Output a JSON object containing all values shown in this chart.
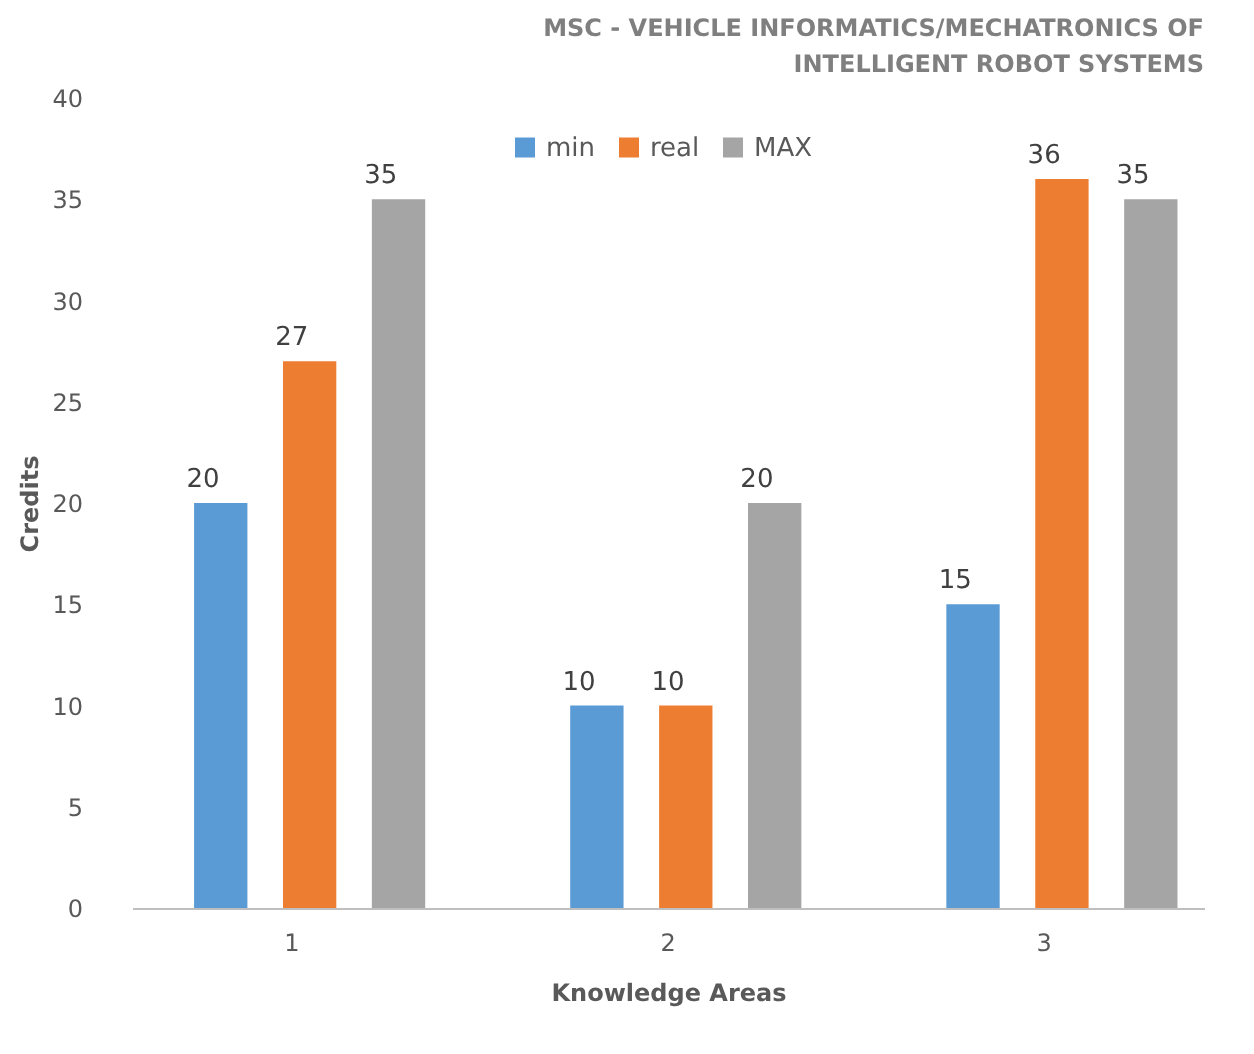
{
  "chart_data": {
    "type": "bar",
    "title": "MSC - VEHICLE INFORMATICS/MECHATRONICS OF INTELLIGENT ROBOT SYSTEMS",
    "xlabel": "Knowledge Areas",
    "ylabel": "Credits",
    "categories": [
      "1",
      "2",
      "3"
    ],
    "series": [
      {
        "name": "min",
        "color": "#5b9bd5",
        "values": [
          20,
          10,
          15
        ]
      },
      {
        "name": "real",
        "color": "#ed7d31",
        "values": [
          27,
          10,
          36
        ]
      },
      {
        "name": "MAX",
        "color": "#a5a5a5",
        "values": [
          35,
          20,
          35
        ]
      }
    ],
    "ylim": [
      0,
      40
    ],
    "yticks": [
      0,
      5,
      10,
      15,
      20,
      25,
      30,
      35,
      40
    ],
    "data_labels": true,
    "grid": false,
    "legend": "top"
  }
}
